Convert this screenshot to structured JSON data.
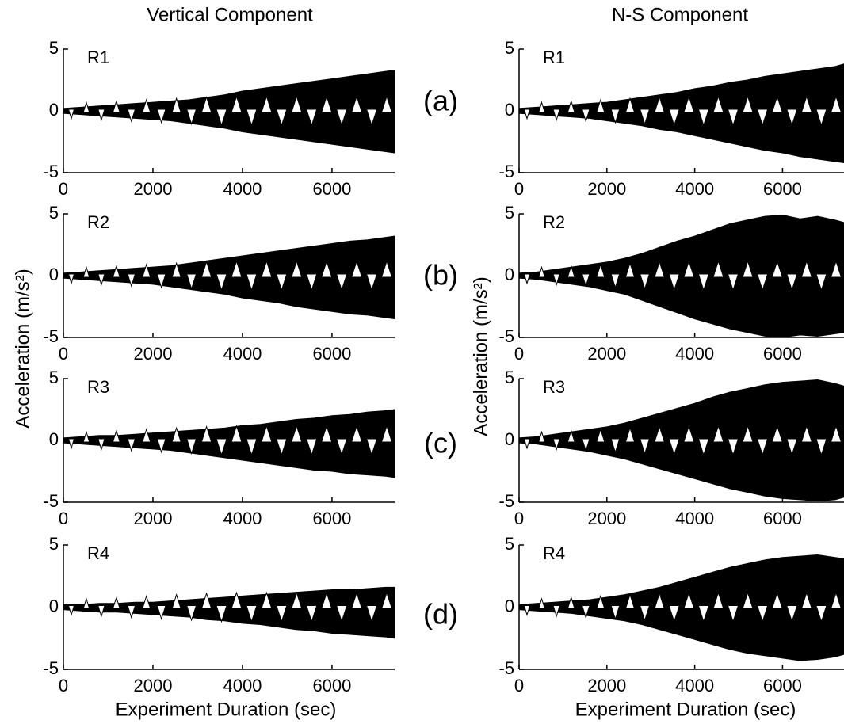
{
  "column_titles": [
    "Vertical Component",
    "N-S Component"
  ],
  "row_labels": [
    "(a)",
    "(b)",
    "(c)",
    "(d)"
  ],
  "y_axis_labels": [
    "Acceleration (m/s²)",
    "Acceleration (m/s²)"
  ],
  "x_axis_labels": [
    "Experiment Duration (sec)",
    "Experiment Duration (sec)"
  ],
  "chart_data": [
    {
      "type": "band",
      "label": "R1",
      "color": "#000000",
      "xlim": [
        0,
        7400
      ],
      "ylim": [
        -5,
        5
      ],
      "xticks": [
        0,
        2000,
        4000,
        6000
      ],
      "yticks": [
        -5,
        0,
        5
      ],
      "x": [
        0,
        400,
        800,
        1200,
        1600,
        2000,
        2400,
        2800,
        3200,
        3600,
        4000,
        4400,
        4800,
        5200,
        5600,
        6000,
        6400,
        6800,
        7200,
        7400
      ],
      "upper": [
        0.2,
        0.3,
        0.4,
        0.5,
        0.6,
        0.7,
        0.8,
        0.9,
        1.1,
        1.3,
        1.6,
        1.8,
        2.0,
        2.2,
        2.4,
        2.6,
        2.8,
        3.0,
        3.2,
        3.3
      ],
      "lower": [
        -0.2,
        -0.3,
        -0.4,
        -0.5,
        -0.6,
        -0.7,
        -0.8,
        -1.0,
        -1.2,
        -1.4,
        -1.7,
        -1.9,
        -2.1,
        -2.3,
        -2.5,
        -2.7,
        -2.9,
        -3.1,
        -3.3,
        -3.4
      ]
    },
    {
      "type": "band",
      "label": "R2",
      "color": "#000000",
      "xlim": [
        0,
        7400
      ],
      "ylim": [
        -5,
        5
      ],
      "xticks": [
        0,
        2000,
        4000,
        6000
      ],
      "yticks": [
        -5,
        0,
        5
      ],
      "x": [
        0,
        400,
        800,
        1200,
        1600,
        2000,
        2400,
        2800,
        3200,
        3600,
        4000,
        4400,
        4800,
        5200,
        5600,
        6000,
        6400,
        6800,
        7200,
        7400
      ],
      "upper": [
        0.2,
        0.3,
        0.4,
        0.5,
        0.6,
        0.7,
        0.8,
        1.0,
        1.2,
        1.4,
        1.6,
        1.8,
        2.0,
        2.2,
        2.4,
        2.6,
        2.8,
        2.9,
        3.1,
        3.2
      ],
      "lower": [
        -0.2,
        -0.3,
        -0.4,
        -0.5,
        -0.6,
        -0.7,
        -0.9,
        -1.1,
        -1.3,
        -1.5,
        -1.8,
        -2.0,
        -2.2,
        -2.5,
        -2.7,
        -2.9,
        -3.1,
        -3.2,
        -3.4,
        -3.5
      ]
    },
    {
      "type": "band",
      "label": "R3",
      "color": "#000000",
      "xlim": [
        0,
        7400
      ],
      "ylim": [
        -5,
        5
      ],
      "xticks": [
        0,
        2000,
        4000,
        6000
      ],
      "yticks": [
        -5,
        0,
        5
      ],
      "x": [
        0,
        400,
        800,
        1200,
        1600,
        2000,
        2400,
        2800,
        3200,
        3600,
        4000,
        4400,
        4800,
        5200,
        5600,
        6000,
        6400,
        6800,
        7200,
        7400
      ],
      "upper": [
        0.2,
        0.3,
        0.4,
        0.4,
        0.5,
        0.6,
        0.7,
        0.8,
        0.9,
        1.0,
        1.2,
        1.3,
        1.5,
        1.7,
        1.8,
        2.0,
        2.1,
        2.3,
        2.4,
        2.5
      ],
      "lower": [
        -0.2,
        -0.3,
        -0.4,
        -0.5,
        -0.6,
        -0.7,
        -0.8,
        -1.0,
        -1.2,
        -1.4,
        -1.6,
        -1.8,
        -2.0,
        -2.2,
        -2.4,
        -2.5,
        -2.7,
        -2.8,
        -2.9,
        -3.0
      ]
    },
    {
      "type": "band",
      "label": "R4",
      "color": "#000000",
      "xlim": [
        0,
        7400
      ],
      "ylim": [
        -5,
        5
      ],
      "xticks": [
        0,
        2000,
        4000,
        6000
      ],
      "yticks": [
        -5,
        0,
        5
      ],
      "x": [
        0,
        400,
        800,
        1200,
        1600,
        2000,
        2400,
        2800,
        3200,
        3600,
        4000,
        4400,
        4800,
        5200,
        5600,
        6000,
        6400,
        6800,
        7200,
        7400
      ],
      "upper": [
        0.2,
        0.2,
        0.3,
        0.3,
        0.4,
        0.4,
        0.5,
        0.6,
        0.7,
        0.8,
        0.9,
        1.0,
        1.1,
        1.2,
        1.3,
        1.4,
        1.4,
        1.5,
        1.6,
        1.6
      ],
      "lower": [
        -0.2,
        -0.3,
        -0.4,
        -0.4,
        -0.5,
        -0.6,
        -0.7,
        -0.8,
        -1.0,
        -1.1,
        -1.3,
        -1.4,
        -1.6,
        -1.8,
        -1.9,
        -2.1,
        -2.2,
        -2.3,
        -2.4,
        -2.5
      ]
    },
    {
      "type": "band",
      "label": "R1",
      "color": "#000000",
      "xlim": [
        0,
        7400
      ],
      "ylim": [
        -5,
        5
      ],
      "xticks": [
        0,
        2000,
        4000,
        6000
      ],
      "yticks": [
        -5,
        0,
        5
      ],
      "x": [
        0,
        400,
        800,
        1200,
        1600,
        2000,
        2400,
        2800,
        3200,
        3600,
        4000,
        4400,
        4800,
        5200,
        5600,
        6000,
        6400,
        6800,
        7200,
        7400
      ],
      "upper": [
        0.2,
        0.3,
        0.4,
        0.5,
        0.6,
        0.7,
        0.9,
        1.1,
        1.3,
        1.5,
        1.8,
        2.0,
        2.3,
        2.5,
        2.8,
        3.0,
        3.2,
        3.4,
        3.6,
        3.8
      ],
      "lower": [
        -0.2,
        -0.3,
        -0.4,
        -0.5,
        -0.6,
        -0.8,
        -1.0,
        -1.2,
        -1.5,
        -1.7,
        -2.0,
        -2.3,
        -2.6,
        -2.9,
        -3.2,
        -3.4,
        -3.7,
        -3.9,
        -4.1,
        -4.2
      ]
    },
    {
      "type": "band",
      "label": "R2",
      "color": "#000000",
      "xlim": [
        0,
        7400
      ],
      "ylim": [
        -5,
        5
      ],
      "xticks": [
        0,
        2000,
        4000,
        6000
      ],
      "yticks": [
        -5,
        0,
        5
      ],
      "x": [
        0,
        400,
        800,
        1200,
        1600,
        2000,
        2400,
        2800,
        3200,
        3600,
        4000,
        4400,
        4800,
        5200,
        5600,
        6000,
        6400,
        6800,
        7200,
        7400
      ],
      "upper": [
        0.2,
        0.3,
        0.5,
        0.7,
        0.9,
        1.1,
        1.4,
        1.8,
        2.3,
        2.8,
        3.2,
        3.7,
        4.2,
        4.5,
        4.8,
        4.9,
        4.6,
        4.8,
        4.5,
        4.3
      ],
      "lower": [
        -0.2,
        -0.3,
        -0.5,
        -0.7,
        -0.9,
        -1.2,
        -1.5,
        -2.0,
        -2.5,
        -3.0,
        -3.5,
        -3.9,
        -4.3,
        -4.6,
        -4.9,
        -5.0,
        -4.8,
        -4.9,
        -4.7,
        -4.6
      ]
    },
    {
      "type": "band",
      "label": "R3",
      "color": "#000000",
      "xlim": [
        0,
        7400
      ],
      "ylim": [
        -5,
        5
      ],
      "xticks": [
        0,
        2000,
        4000,
        6000
      ],
      "yticks": [
        -5,
        0,
        5
      ],
      "x": [
        0,
        400,
        800,
        1200,
        1600,
        2000,
        2400,
        2800,
        3200,
        3600,
        4000,
        4400,
        4800,
        5200,
        5600,
        6000,
        6400,
        6800,
        7200,
        7400
      ],
      "upper": [
        0.2,
        0.3,
        0.5,
        0.7,
        0.9,
        1.1,
        1.4,
        1.8,
        2.2,
        2.6,
        3.0,
        3.5,
        3.9,
        4.2,
        4.5,
        4.7,
        4.8,
        4.9,
        4.6,
        4.4
      ],
      "lower": [
        -0.2,
        -0.3,
        -0.5,
        -0.7,
        -0.9,
        -1.2,
        -1.5,
        -1.9,
        -2.3,
        -2.7,
        -3.1,
        -3.5,
        -3.9,
        -4.2,
        -4.5,
        -4.7,
        -4.8,
        -4.9,
        -4.8,
        -4.6
      ]
    },
    {
      "type": "band",
      "label": "R4",
      "color": "#000000",
      "xlim": [
        0,
        7400
      ],
      "ylim": [
        -5,
        5
      ],
      "xticks": [
        0,
        2000,
        4000,
        6000
      ],
      "yticks": [
        -5,
        0,
        5
      ],
      "x": [
        0,
        400,
        800,
        1200,
        1600,
        2000,
        2400,
        2800,
        3200,
        3600,
        4000,
        4400,
        4800,
        5200,
        5600,
        6000,
        6400,
        6800,
        7200,
        7400
      ],
      "upper": [
        0.2,
        0.3,
        0.4,
        0.5,
        0.6,
        0.8,
        1.0,
        1.3,
        1.6,
        2.0,
        2.4,
        2.8,
        3.2,
        3.5,
        3.8,
        4.0,
        4.1,
        4.2,
        4.0,
        3.9
      ],
      "lower": [
        -0.2,
        -0.3,
        -0.4,
        -0.5,
        -0.7,
        -0.9,
        -1.1,
        -1.4,
        -1.8,
        -2.2,
        -2.6,
        -3.0,
        -3.4,
        -3.7,
        -3.9,
        -4.1,
        -4.3,
        -4.2,
        -4.0,
        -3.8
      ]
    }
  ]
}
